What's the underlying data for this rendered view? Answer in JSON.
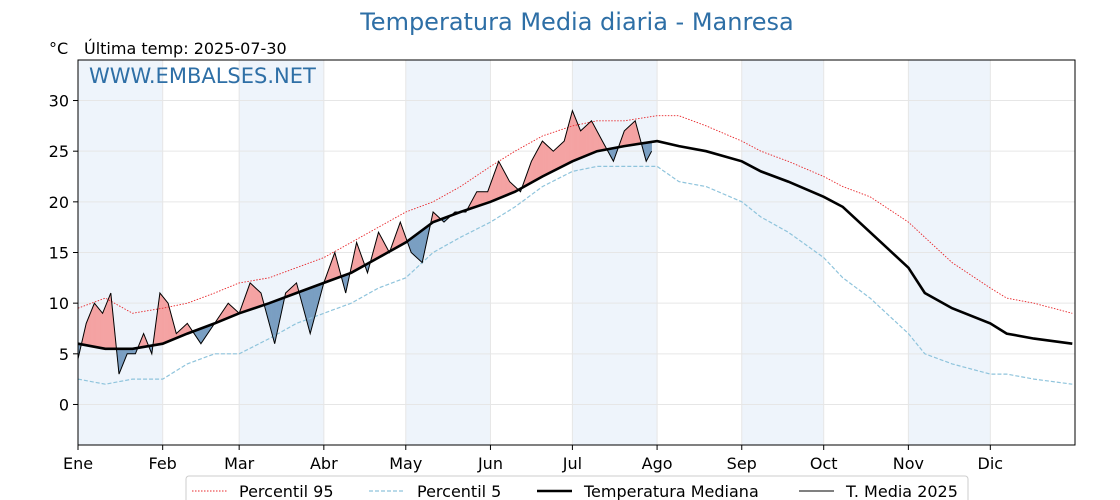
{
  "header": {
    "title": "Temperatura Media diaria - Manresa",
    "unit": "°C",
    "last_temp": "Última temp: 2025-07-30",
    "watermark": "WWW.EMBALSES.NET"
  },
  "colors": {
    "p95": "#e8272b",
    "p5": "#8fc4dc",
    "median": "#000000",
    "current": "#000000",
    "above_fill": "#f4a3a3",
    "above_strong": "#ee5555",
    "below_fill": "#7a9fc2",
    "below_strong": "#2f6b9c",
    "month_band": "#eef4fb"
  },
  "chart_data": {
    "type": "line",
    "title": "Temperatura Media diaria - Manresa",
    "ylabel": "°C",
    "xlabel": "",
    "ylim": [
      -4,
      34
    ],
    "yticks": [
      0,
      5,
      10,
      15,
      20,
      25,
      30
    ],
    "months": [
      "Ene",
      "Feb",
      "Mar",
      "Abr",
      "May",
      "Jun",
      "Jul",
      "Ago",
      "Sep",
      "Oct",
      "Nov",
      "Dic"
    ],
    "month_start_days": [
      0,
      31,
      59,
      90,
      120,
      151,
      181,
      212,
      243,
      273,
      304,
      334
    ],
    "days_in_year": 365,
    "grid": true,
    "legend_position": "bottom",
    "series": [
      {
        "name": "Percentil 95",
        "style": "dotted",
        "x": [
          0,
          10,
          20,
          31,
          40,
          50,
          59,
          70,
          80,
          90,
          100,
          110,
          120,
          130,
          140,
          151,
          160,
          170,
          181,
          190,
          200,
          212,
          220,
          230,
          243,
          250,
          260,
          273,
          280,
          290,
          304,
          310,
          320,
          334,
          340,
          350,
          364
        ],
        "values": [
          9.5,
          10.5,
          9,
          9.5,
          10,
          11,
          12,
          12.5,
          13.5,
          14.5,
          16,
          17.5,
          19,
          20,
          21.5,
          23.5,
          25,
          26.5,
          27.5,
          28,
          28,
          28.5,
          28.5,
          27.5,
          26,
          25,
          24,
          22.5,
          21.5,
          20.5,
          18,
          16.5,
          14,
          11.5,
          10.5,
          10,
          9
        ]
      },
      {
        "name": "Percentil 5",
        "style": "dashed",
        "x": [
          0,
          10,
          20,
          31,
          40,
          50,
          59,
          70,
          80,
          90,
          100,
          110,
          120,
          130,
          140,
          151,
          160,
          170,
          181,
          190,
          200,
          212,
          220,
          230,
          243,
          250,
          260,
          273,
          280,
          290,
          304,
          310,
          320,
          334,
          340,
          350,
          364
        ],
        "values": [
          2.5,
          2,
          2.5,
          2.5,
          4,
          5,
          5,
          6.5,
          8,
          9,
          10,
          11.5,
          12.5,
          15,
          16.5,
          18,
          19.5,
          21.5,
          23,
          23.5,
          23.5,
          23.5,
          22,
          21.5,
          20,
          18.5,
          17,
          14.5,
          12.5,
          10.5,
          7,
          5,
          4,
          3,
          3,
          2.5,
          2
        ]
      },
      {
        "name": "Temperatura Mediana",
        "style": "solid-thick",
        "x": [
          0,
          10,
          20,
          31,
          40,
          50,
          59,
          70,
          80,
          90,
          100,
          110,
          120,
          130,
          140,
          151,
          160,
          170,
          181,
          190,
          200,
          212,
          220,
          230,
          243,
          250,
          260,
          273,
          280,
          290,
          304,
          310,
          320,
          334,
          340,
          350,
          364
        ],
        "values": [
          6,
          5.5,
          5.5,
          6,
          7,
          8,
          9,
          10,
          11,
          12,
          13,
          14.5,
          16,
          18,
          19,
          20,
          21,
          22.5,
          24,
          25,
          25.5,
          26,
          25.5,
          25,
          24,
          23,
          22,
          20.5,
          19.5,
          17,
          13.5,
          11,
          9.5,
          8,
          7,
          6.5,
          6
        ]
      },
      {
        "name": "T. Media 2025",
        "style": "solid-thin",
        "x": [
          0,
          3,
          6,
          9,
          12,
          15,
          18,
          21,
          24,
          27,
          30,
          33,
          36,
          40,
          45,
          50,
          55,
          59,
          63,
          67,
          72,
          76,
          80,
          85,
          90,
          94,
          98,
          102,
          106,
          110,
          114,
          118,
          122,
          126,
          130,
          134,
          138,
          142,
          146,
          150,
          154,
          158,
          162,
          166,
          170,
          174,
          178,
          181,
          184,
          188,
          192,
          196,
          200,
          204,
          208,
          210
        ],
        "values": [
          4.5,
          8,
          10,
          9,
          11,
          3,
          5,
          5,
          7,
          5,
          11,
          10,
          7,
          8,
          6,
          8,
          10,
          9,
          12,
          11,
          6,
          11,
          12,
          7,
          12,
          15,
          11,
          16,
          13,
          17,
          15,
          18,
          15,
          14,
          19,
          18,
          19,
          19,
          21,
          21,
          24,
          22,
          21,
          24,
          26,
          25,
          26,
          29,
          27,
          28,
          26,
          24,
          27,
          28,
          24,
          25
        ]
      }
    ]
  }
}
